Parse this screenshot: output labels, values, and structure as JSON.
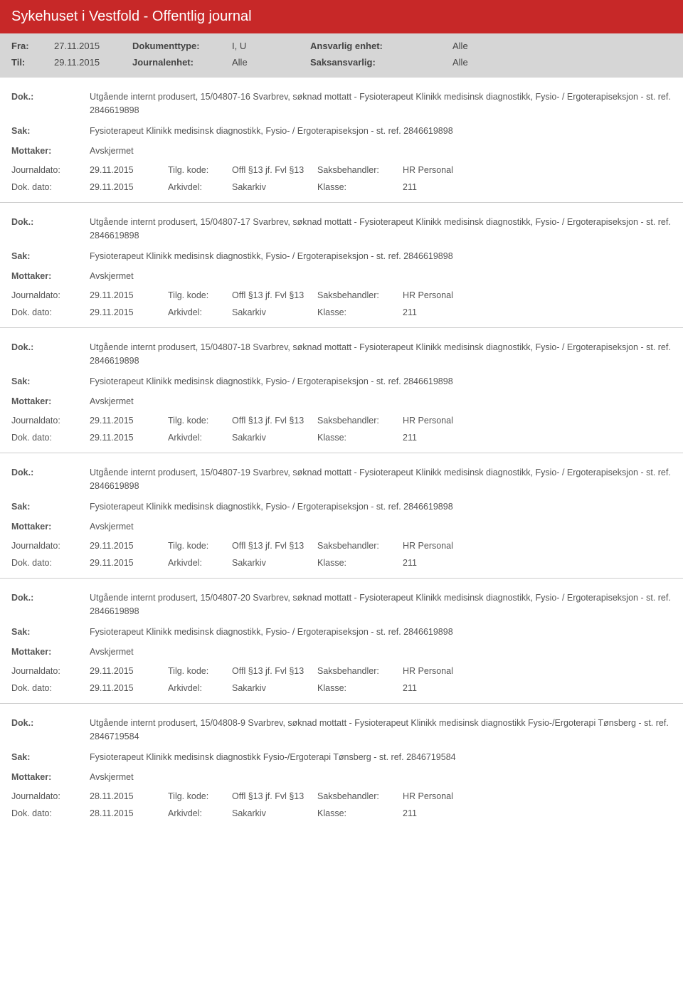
{
  "title": "Sykehuset i Vestfold - Offentlig journal",
  "header": {
    "fra_label": "Fra:",
    "fra_value": "27.11.2015",
    "doktype_label": "Dokumenttype:",
    "doktype_value": "I, U",
    "ansvarlig_label": "Ansvarlig enhet:",
    "ansvarlig_value": "Alle",
    "til_label": "Til:",
    "til_value": "29.11.2015",
    "journalenhet_label": "Journalenhet:",
    "journalenhet_value": "Alle",
    "saksansvarlig_label": "Saksansvarlig:",
    "saksansvarlig_value": "Alle"
  },
  "labels": {
    "dok": "Dok.:",
    "sak": "Sak:",
    "mottaker": "Mottaker:",
    "journaldato": "Journaldato:",
    "tilgkode": "Tilg. kode:",
    "saksbehandler": "Saksbehandler:",
    "dokdato": "Dok. dato:",
    "arkivdel": "Arkivdel:",
    "klasse": "Klasse:"
  },
  "entries": [
    {
      "dok": "Utgående internt produsert, 15/04807-16 Svarbrev, søknad mottatt - Fysioterapeut Klinikk medisinsk diagnostikk, Fysio- / Ergoterapiseksjon - st. ref. 2846619898",
      "sak": "Fysioterapeut Klinikk medisinsk diagnostikk, Fysio- / Ergoterapiseksjon - st. ref. 2846619898",
      "mottaker": "Avskjermet",
      "journaldato": "29.11.2015",
      "tilgkode": "Offl §13 jf. Fvl §13",
      "saksbehandler": "HR Personal",
      "dokdato": "29.11.2015",
      "arkivdel": "Sakarkiv",
      "klasse": "211"
    },
    {
      "dok": "Utgående internt produsert, 15/04807-17 Svarbrev, søknad mottatt - Fysioterapeut Klinikk medisinsk diagnostikk, Fysio- / Ergoterapiseksjon - st. ref. 2846619898",
      "sak": "Fysioterapeut Klinikk medisinsk diagnostikk, Fysio- / Ergoterapiseksjon - st. ref. 2846619898",
      "mottaker": "Avskjermet",
      "journaldato": "29.11.2015",
      "tilgkode": "Offl §13 jf. Fvl §13",
      "saksbehandler": "HR Personal",
      "dokdato": "29.11.2015",
      "arkivdel": "Sakarkiv",
      "klasse": "211"
    },
    {
      "dok": "Utgående internt produsert, 15/04807-18 Svarbrev, søknad mottatt - Fysioterapeut Klinikk medisinsk diagnostikk, Fysio- / Ergoterapiseksjon - st. ref. 2846619898",
      "sak": "Fysioterapeut Klinikk medisinsk diagnostikk, Fysio- / Ergoterapiseksjon - st. ref. 2846619898",
      "mottaker": "Avskjermet",
      "journaldato": "29.11.2015",
      "tilgkode": "Offl §13 jf. Fvl §13",
      "saksbehandler": "HR Personal",
      "dokdato": "29.11.2015",
      "arkivdel": "Sakarkiv",
      "klasse": "211"
    },
    {
      "dok": "Utgående internt produsert, 15/04807-19 Svarbrev, søknad mottatt - Fysioterapeut Klinikk medisinsk diagnostikk, Fysio- / Ergoterapiseksjon - st. ref. 2846619898",
      "sak": "Fysioterapeut Klinikk medisinsk diagnostikk, Fysio- / Ergoterapiseksjon - st. ref. 2846619898",
      "mottaker": "Avskjermet",
      "journaldato": "29.11.2015",
      "tilgkode": "Offl §13 jf. Fvl §13",
      "saksbehandler": "HR Personal",
      "dokdato": "29.11.2015",
      "arkivdel": "Sakarkiv",
      "klasse": "211"
    },
    {
      "dok": "Utgående internt produsert, 15/04807-20 Svarbrev, søknad mottatt - Fysioterapeut Klinikk medisinsk diagnostikk, Fysio- / Ergoterapiseksjon - st. ref. 2846619898",
      "sak": "Fysioterapeut Klinikk medisinsk diagnostikk, Fysio- / Ergoterapiseksjon - st. ref. 2846619898",
      "mottaker": "Avskjermet",
      "journaldato": "29.11.2015",
      "tilgkode": "Offl §13 jf. Fvl §13",
      "saksbehandler": "HR Personal",
      "dokdato": "29.11.2015",
      "arkivdel": "Sakarkiv",
      "klasse": "211"
    },
    {
      "dok": "Utgående internt produsert, 15/04808-9 Svarbrev, søknad mottatt - Fysioterapeut Klinikk medisinsk diagnostikk Fysio-/Ergoterapi Tønsberg - st. ref. 2846719584",
      "sak": "Fysioterapeut Klinikk medisinsk diagnostikk Fysio-/Ergoterapi Tønsberg - st. ref. 2846719584",
      "mottaker": "Avskjermet",
      "journaldato": "28.11.2015",
      "tilgkode": "Offl §13 jf. Fvl §13",
      "saksbehandler": "HR Personal",
      "dokdato": "28.11.2015",
      "arkivdel": "Sakarkiv",
      "klasse": "211"
    }
  ]
}
